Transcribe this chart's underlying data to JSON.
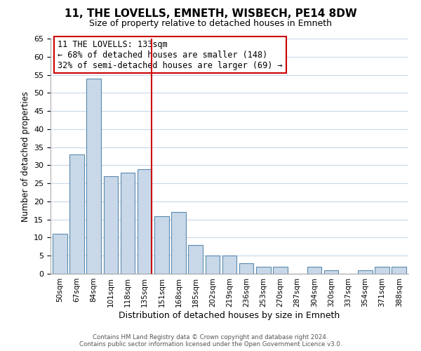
{
  "title": "11, THE LOVELLS, EMNETH, WISBECH, PE14 8DW",
  "subtitle": "Size of property relative to detached houses in Emneth",
  "xlabel": "Distribution of detached houses by size in Emneth",
  "ylabel": "Number of detached properties",
  "bar_labels": [
    "50sqm",
    "67sqm",
    "84sqm",
    "101sqm",
    "118sqm",
    "135sqm",
    "151sqm",
    "168sqm",
    "185sqm",
    "202sqm",
    "219sqm",
    "236sqm",
    "253sqm",
    "270sqm",
    "287sqm",
    "304sqm",
    "320sqm",
    "337sqm",
    "354sqm",
    "371sqm",
    "388sqm"
  ],
  "bar_values": [
    11,
    33,
    54,
    27,
    28,
    29,
    16,
    17,
    8,
    5,
    5,
    3,
    2,
    2,
    0,
    2,
    1,
    0,
    1,
    2,
    2
  ],
  "bar_color": "#c8d8e8",
  "bar_edge_color": "#5a8ab0",
  "highlight_index": 5,
  "highlight_line_color": "#cc0000",
  "ylim": [
    0,
    65
  ],
  "yticks": [
    0,
    5,
    10,
    15,
    20,
    25,
    30,
    35,
    40,
    45,
    50,
    55,
    60,
    65
  ],
  "annotation_title": "11 THE LOVELLS: 133sqm",
  "annotation_line1": "← 68% of detached houses are smaller (148)",
  "annotation_line2": "32% of semi-detached houses are larger (69) →",
  "annotation_box_color": "#ffffff",
  "annotation_box_edge_color": "#cc0000",
  "footer_line1": "Contains HM Land Registry data © Crown copyright and database right 2024.",
  "footer_line2": "Contains public sector information licensed under the Open Government Licence v3.0.",
  "background_color": "#ffffff",
  "grid_color": "#c8d8e8"
}
